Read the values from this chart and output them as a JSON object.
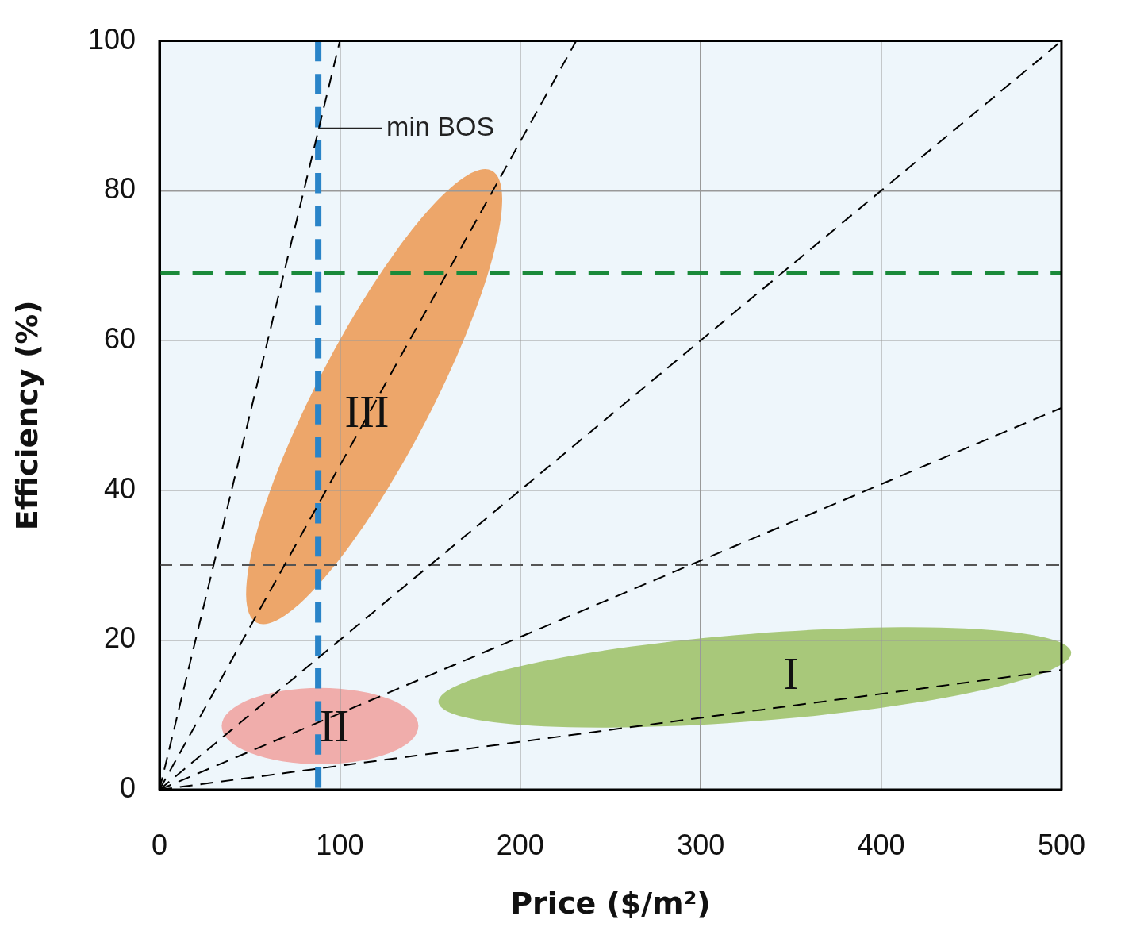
{
  "chart_data": {
    "type": "line",
    "xlabel": "Price ($/m²)",
    "ylabel": "Efficiency (%)",
    "xlim": [
      0,
      500
    ],
    "ylim": [
      0,
      100
    ],
    "xticks": [
      0,
      100,
      200,
      300,
      400,
      500
    ],
    "yticks": [
      0,
      20,
      40,
      60,
      80,
      100
    ],
    "grid": true,
    "legend": false,
    "marker": "none",
    "line_style": "dashed",
    "series": [
      {
        "color": "#000000",
        "x": [
          0,
          100
        ],
        "values": [
          0,
          100
        ]
      },
      {
        "color": "#000000",
        "x": [
          0,
          231
        ],
        "values": [
          0,
          100
        ]
      },
      {
        "color": "#000000",
        "x": [
          0,
          500
        ],
        "values": [
          0,
          100
        ]
      },
      {
        "color": "#000000",
        "x": [
          0,
          500
        ],
        "values": [
          0,
          51
        ]
      },
      {
        "color": "#000000",
        "x": [
          0,
          500
        ],
        "values": [
          0,
          16
        ]
      }
    ],
    "ref_lines": [
      {
        "axis": "y",
        "value": 30,
        "label": null,
        "color": "#555555",
        "line_style": "dashed"
      },
      {
        "axis": "y",
        "value": 69,
        "label": null,
        "color": "#1a8a3a",
        "line_style": "dashed"
      },
      {
        "axis": "x",
        "value": 88,
        "label": "min BOS",
        "color": "#2a84c8",
        "line_style": "dashed"
      }
    ],
    "annotations": [
      "I",
      "II",
      "III"
    ]
  }
}
